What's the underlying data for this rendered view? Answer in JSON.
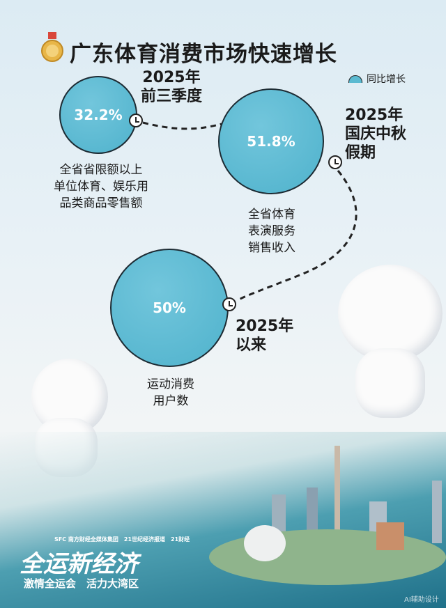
{
  "title": "广东体育消费市场快速增长",
  "legend": {
    "label": "同比增长",
    "icon": "half-circle-icon",
    "color": "#5bbad1"
  },
  "items": [
    {
      "period": [
        "2025年",
        "前三季度"
      ],
      "value": "32.2%",
      "label": [
        "全省省限额以上",
        "单位体育、娱乐用",
        "品类商品零售额"
      ]
    },
    {
      "period": [
        "2025年",
        "国庆中秋",
        "假期"
      ],
      "value": "51.8%",
      "label": [
        "全省体育",
        "表演服务",
        "销售收入"
      ]
    },
    {
      "period": [
        "2025年",
        "以来"
      ],
      "value": "50%",
      "label": [
        "运动消费",
        "用户数"
      ]
    }
  ],
  "footer": {
    "brand": "全运新经济",
    "slogan": "激情全运会　活力大湾区",
    "logos": [
      "SFC 南方财经全媒体集团",
      "21世纪经济报道",
      "21财经"
    ],
    "watermark": "AI辅助设计"
  }
}
